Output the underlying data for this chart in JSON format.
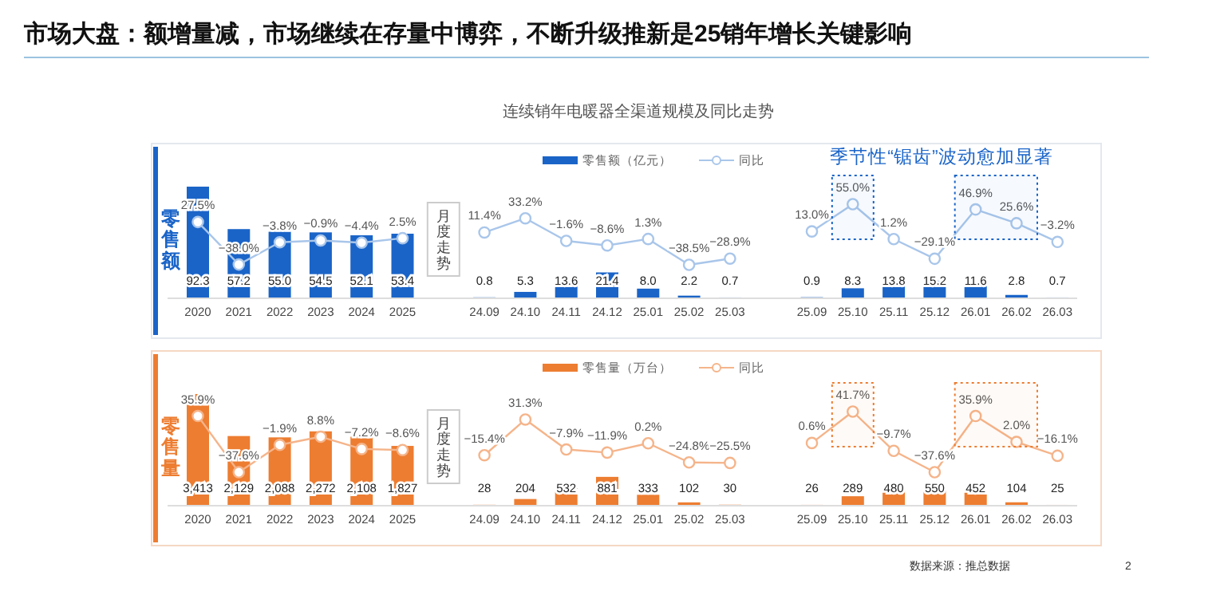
{
  "chart_data": [
    {
      "type": "bar",
      "title": "市场大盘：额增量减，市场继续在存量中博弈，不断升级推新是25销年增长关键影响",
      "subtitle": "连续销年电暖器全渠道规模及同比走势",
      "ylabel": "零售额",
      "legend": "top",
      "marker": "circle",
      "categories": [
        "2020",
        "2021",
        "2022",
        "2023",
        "2024",
        "2025",
        null,
        "24.09",
        "24.10",
        "24.11",
        "24.12",
        "25.01",
        "25.02",
        "25.03",
        null,
        "25.09",
        "25.10",
        "25.11",
        "25.12",
        "26.01",
        "26.02",
        "26.03"
      ],
      "series": [
        {
          "name": "零售额（亿元）",
          "color": "#1a64c8",
          "values": [
            92.3,
            57.2,
            55.0,
            54.5,
            52.1,
            53.4,
            null,
            0.8,
            5.3,
            13.6,
            21.4,
            8.0,
            2.2,
            0.7,
            null,
            0.9,
            8.3,
            13.8,
            15.2,
            11.6,
            2.8,
            0.7
          ],
          "value_labels": [
            "92.3",
            "57.2",
            "55.0",
            "54.5",
            "52.1",
            "53.4",
            null,
            "0.8",
            "5.3",
            "13.6",
            "21.4",
            "8.0",
            "2.2",
            "0.7",
            null,
            "0.9",
            "8.3",
            "13.8",
            "15.2",
            "11.6",
            "2.8",
            "0.7"
          ]
        },
        {
          "name": "同比",
          "type": "line",
          "axis": "y2",
          "color": "#a9c6ea",
          "values": [
            27.5,
            -38.0,
            -3.8,
            -0.9,
            -4.4,
            2.5,
            null,
            11.4,
            33.2,
            -1.6,
            -8.6,
            1.3,
            -38.5,
            -28.9,
            null,
            13.0,
            55.0,
            1.2,
            -29.1,
            46.9,
            25.6,
            -3.2
          ],
          "value_labels": [
            "27.5%",
            "−38.0%",
            "−3.8%",
            "−0.9%",
            "−4.4%",
            "2.5%",
            null,
            "11.4%",
            "33.2%",
            "−1.6%",
            "−8.6%",
            "1.3%",
            "−38.5%",
            "−28.9%",
            null,
            "13.0%",
            "55.0%",
            "1.2%",
            "−29.1%",
            "46.9%",
            "25.6%",
            "−3.2%"
          ]
        }
      ],
      "bands": [
        {
          "axis": "x",
          "from": "25.10",
          "to": "25.10",
          "color": "#1a64c8"
        },
        {
          "axis": "x",
          "from": "26.01",
          "to": "26.02",
          "color": "#1a64c8"
        }
      ],
      "annotations": [
        "月度走势",
        "季节性“锯齿”波动愈加显著"
      ]
    },
    {
      "type": "bar",
      "ylabel": "零售量",
      "legend": "top",
      "marker": "circle",
      "categories": [
        "2020",
        "2021",
        "2022",
        "2023",
        "2024",
        "2025",
        null,
        "24.09",
        "24.10",
        "24.11",
        "24.12",
        "25.01",
        "25.02",
        "25.03",
        null,
        "25.09",
        "25.10",
        "25.11",
        "25.12",
        "26.01",
        "26.02",
        "26.03"
      ],
      "series": [
        {
          "name": "零售量（万台）",
          "color": "#ed7d31",
          "values": [
            3413,
            2129,
            2088,
            2272,
            2108,
            1827,
            null,
            28,
            204,
            532,
            881,
            333,
            102,
            30,
            null,
            26,
            289,
            480,
            550,
            452,
            104,
            25
          ],
          "value_labels": [
            "3,413",
            "2,129",
            "2,088",
            "2,272",
            "2,108",
            "1,827",
            null,
            "28",
            "204",
            "532",
            "881",
            "333",
            "102",
            "30",
            null,
            "26",
            "289",
            "480",
            "550",
            "452",
            "104",
            "25"
          ]
        },
        {
          "name": "同比",
          "type": "line",
          "axis": "y2",
          "color": "#f5b48a",
          "values": [
            35.9,
            -37.6,
            -1.9,
            8.8,
            -7.2,
            -8.6,
            null,
            -15.4,
            31.3,
            -7.9,
            -11.9,
            0.2,
            -24.8,
            -25.5,
            null,
            0.6,
            41.7,
            -9.7,
            -37.6,
            35.9,
            2.0,
            -16.1
          ],
          "value_labels": [
            "35.9%",
            "−37.6%",
            "−1.9%",
            "8.8%",
            "−7.2%",
            "−8.6%",
            null,
            "−15.4%",
            "31.3%",
            "−7.9%",
            "−11.9%",
            "0.2%",
            "−24.8%",
            "−25.5%",
            null,
            "0.6%",
            "41.7%",
            "−9.7%",
            "−37.6%",
            "35.9%",
            "2.0%",
            "−16.1%"
          ]
        }
      ],
      "bands": [
        {
          "axis": "x",
          "from": "25.10",
          "to": "25.10",
          "color": "#ed7d31"
        },
        {
          "axis": "x",
          "from": "26.01",
          "to": "26.02",
          "color": "#ed7d31"
        }
      ],
      "annotations": [
        "月度走势",
        "数据来源：推总数据",
        "2"
      ]
    }
  ]
}
